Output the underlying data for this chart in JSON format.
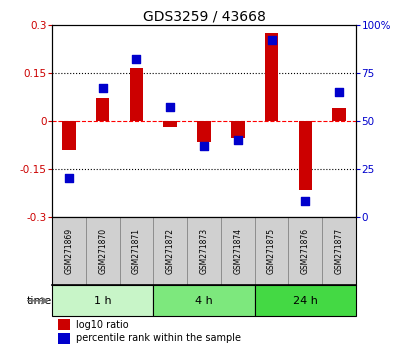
{
  "title": "GDS3259 / 43668",
  "samples": [
    "GSM271869",
    "GSM271870",
    "GSM271871",
    "GSM271872",
    "GSM271873",
    "GSM271874",
    "GSM271875",
    "GSM271876",
    "GSM271877"
  ],
  "log10_ratio": [
    -0.09,
    0.07,
    0.165,
    -0.02,
    -0.065,
    -0.055,
    0.275,
    -0.215,
    0.04
  ],
  "percentile_rank": [
    20,
    67,
    82,
    57,
    37,
    40,
    92,
    8,
    65
  ],
  "groups": [
    {
      "label": "1 h",
      "indices": [
        0,
        1,
        2
      ],
      "color": "#c8f5c8"
    },
    {
      "label": "4 h",
      "indices": [
        3,
        4,
        5
      ],
      "color": "#7de87d"
    },
    {
      "label": "24 h",
      "indices": [
        6,
        7,
        8
      ],
      "color": "#44d944"
    }
  ],
  "ylim_left": [
    -0.3,
    0.3
  ],
  "ylim_right": [
    0,
    100
  ],
  "yticks_left": [
    -0.3,
    -0.15,
    0,
    0.15,
    0.3
  ],
  "yticks_right": [
    0,
    25,
    50,
    75,
    100
  ],
  "hlines_dotted": [
    -0.15,
    0.15
  ],
  "hline_red": 0,
  "bar_color": "#cc0000",
  "dot_color": "#0000cc",
  "bar_width": 0.4,
  "dot_size": 30,
  "legend_bar_label": "log10 ratio",
  "legend_dot_label": "percentile rank within the sample",
  "time_label": "time",
  "left_axis_color": "#cc0000",
  "right_axis_color": "#0000cc",
  "bg_color": "#ffffff",
  "label_box_color": "#d0d0d0",
  "label_box_edge": "#888888"
}
